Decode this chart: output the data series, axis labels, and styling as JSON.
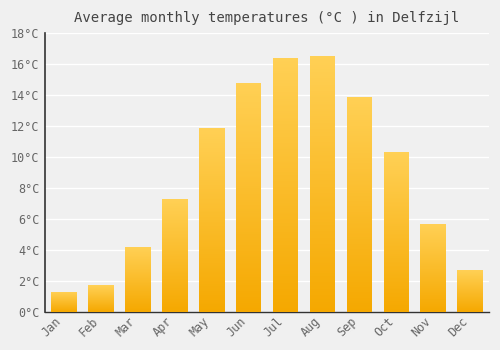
{
  "title": "Average monthly temperatures (°C ) in Delfzijl",
  "months": [
    "Jan",
    "Feb",
    "Mar",
    "Apr",
    "May",
    "Jun",
    "Jul",
    "Aug",
    "Sep",
    "Oct",
    "Nov",
    "Dec"
  ],
  "temperatures": [
    1.3,
    1.7,
    4.2,
    7.3,
    11.9,
    14.8,
    16.4,
    16.5,
    13.9,
    10.3,
    5.7,
    2.7
  ],
  "bar_color_bottom": "#F5A800",
  "bar_color_top": "#FFD055",
  "ylim": [
    0,
    18
  ],
  "yticks": [
    0,
    2,
    4,
    6,
    8,
    10,
    12,
    14,
    16,
    18
  ],
  "ytick_labels": [
    "0°C",
    "2°C",
    "4°C",
    "6°C",
    "8°C",
    "10°C",
    "12°C",
    "14°C",
    "16°C",
    "18°C"
  ],
  "background_color": "#F0F0F0",
  "plot_bg_color": "#F0F0F0",
  "grid_color": "#FFFFFF",
  "title_fontsize": 10,
  "tick_fontsize": 8.5,
  "font_family": "monospace",
  "bar_width": 0.7
}
